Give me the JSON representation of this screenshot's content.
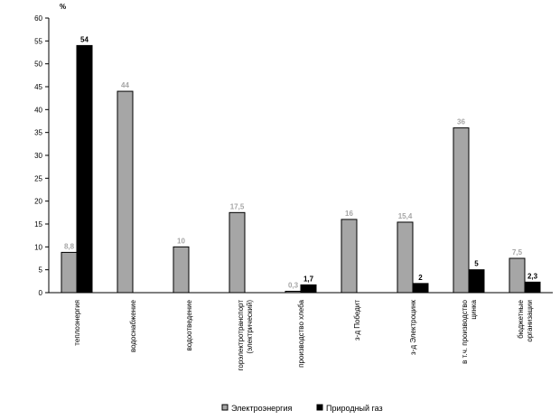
{
  "chart_data": {
    "type": "bar",
    "unit_label": "%",
    "ylim": [
      0,
      60
    ],
    "yticks": [
      0,
      5,
      10,
      15,
      20,
      25,
      30,
      35,
      40,
      45,
      50,
      55,
      60
    ],
    "grid": false,
    "legend_position": "bottom",
    "categories": [
      [
        "теплоэнергия"
      ],
      [
        "водоснабжение"
      ],
      [
        "водоотведение"
      ],
      [
        "горэлектротранспорт",
        "(электрический)"
      ],
      [
        "производство хлеба"
      ],
      [
        "з-д Победит"
      ],
      [
        "з-д Электроцинк"
      ],
      [
        "в т.ч. производство",
        "цинка"
      ],
      [
        "бюджетные",
        "организации"
      ]
    ],
    "series": [
      {
        "name": "Электроэнергия",
        "color": "#a6a6a6",
        "values": [
          8.8,
          44,
          10,
          17.5,
          0.3,
          16,
          15.4,
          36,
          7.5
        ],
        "labels": [
          "8,8",
          "44",
          "10",
          "17,5",
          "0,3",
          "16",
          "15,4",
          "36",
          "7,5"
        ]
      },
      {
        "name": "Природный газ",
        "color": "#000000",
        "values": [
          54,
          null,
          null,
          null,
          1.7,
          null,
          2,
          5,
          2.3
        ],
        "labels": [
          "54",
          "",
          "",
          "",
          "1,7",
          "",
          "2",
          "5",
          "2,3"
        ]
      }
    ]
  }
}
